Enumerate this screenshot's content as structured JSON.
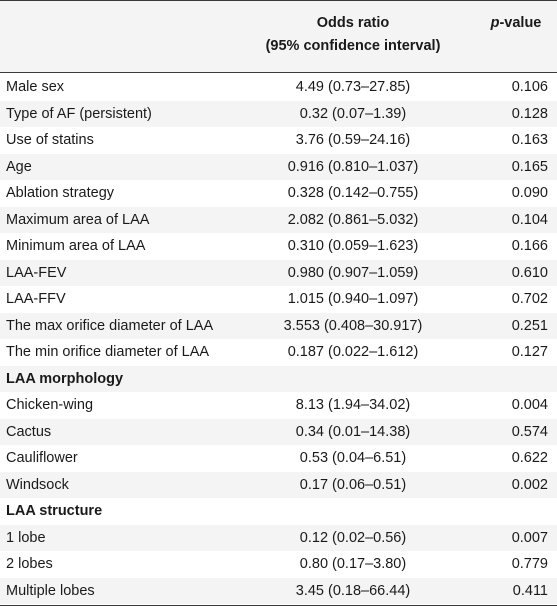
{
  "header": {
    "odds_ratio_line1": "Odds ratio",
    "odds_ratio_line2": "(95% confidence interval)",
    "pvalue_italic": "p",
    "pvalue_rest": "-value"
  },
  "rows": [
    {
      "label": "Male sex",
      "or": "4.49 (0.73–27.85)",
      "p": "0.106"
    },
    {
      "label": "Type of AF (persistent)",
      "or": "0.32 (0.07–1.39)",
      "p": "0.128"
    },
    {
      "label": "Use of statins",
      "or": "3.76 (0.59–24.16)",
      "p": "0.163"
    },
    {
      "label": "Age",
      "or": "0.916 (0.810–1.037)",
      "p": "0.165"
    },
    {
      "label": "Ablation strategy",
      "or": "0.328 (0.142–0.755)",
      "p": "0.090"
    },
    {
      "label": "Maximum area of LAA",
      "or": "2.082 (0.861–5.032)",
      "p": "0.104"
    },
    {
      "label": "Minimum area of LAA",
      "or": "0.310 (0.059–1.623)",
      "p": "0.166"
    },
    {
      "label": "LAA-FEV",
      "or": "0.980 (0.907–1.059)",
      "p": "0.610"
    },
    {
      "label": "LAA-FFV",
      "or": "1.015 (0.940–1.097)",
      "p": "0.702"
    },
    {
      "label": "The max orifice diameter of LAA",
      "or": "3.553 (0.408–30.917)",
      "p": "0.251"
    },
    {
      "label": "The min orifice diameter of LAA",
      "or": "0.187 (0.022–1.612)",
      "p": "0.127"
    },
    {
      "label": "LAA morphology",
      "or": "",
      "p": "",
      "section": true
    },
    {
      "label": "Chicken-wing",
      "or": "8.13 (1.94–34.02)",
      "p": "0.004"
    },
    {
      "label": "Cactus",
      "or": "0.34 (0.01–14.38)",
      "p": "0.574"
    },
    {
      "label": "Cauliflower",
      "or": "0.53 (0.04–6.51)",
      "p": "0.622"
    },
    {
      "label": "Windsock",
      "or": "0.17 (0.06–0.51)",
      "p": "0.002"
    },
    {
      "label": "LAA structure",
      "or": "",
      "p": "",
      "section": true
    },
    {
      "label": "1 lobe",
      "or": "0.12 (0.02–0.56)",
      "p": "0.007"
    },
    {
      "label": "2 lobes",
      "or": "0.80 (0.17–3.80)",
      "p": "0.779"
    },
    {
      "label": "Multiple lobes",
      "or": "3.45 (0.18–66.44)",
      "p": "0.411"
    }
  ],
  "colors": {
    "row_shade": "#f4f4f4",
    "rule": "#3a3a3a",
    "text": "#1a1a1a"
  }
}
